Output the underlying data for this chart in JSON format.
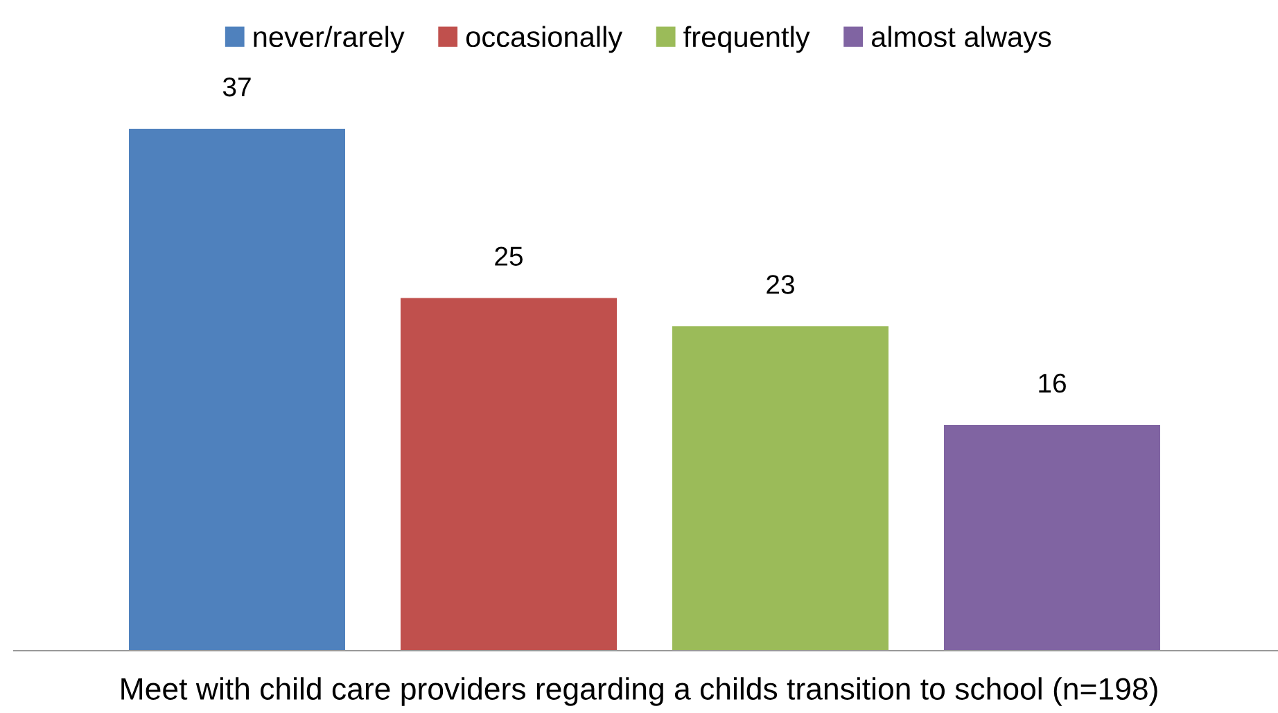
{
  "chart_data": {
    "type": "bar",
    "xlabel": "Meet with child care providers regarding a childs transition to school (n=198)",
    "categories": [
      null
    ],
    "series": [
      {
        "name": "never/rarely",
        "color": "#4f81bd",
        "values": [
          37
        ]
      },
      {
        "name": "occasionally",
        "color": "#c0504d",
        "values": [
          25
        ]
      },
      {
        "name": "frequently",
        "color": "#9bbb59",
        "values": [
          23
        ]
      },
      {
        "name": "almost always",
        "color": "#8064a2",
        "values": [
          16
        ]
      }
    ],
    "data_labels": true,
    "legend": "top",
    "grid": false
  }
}
